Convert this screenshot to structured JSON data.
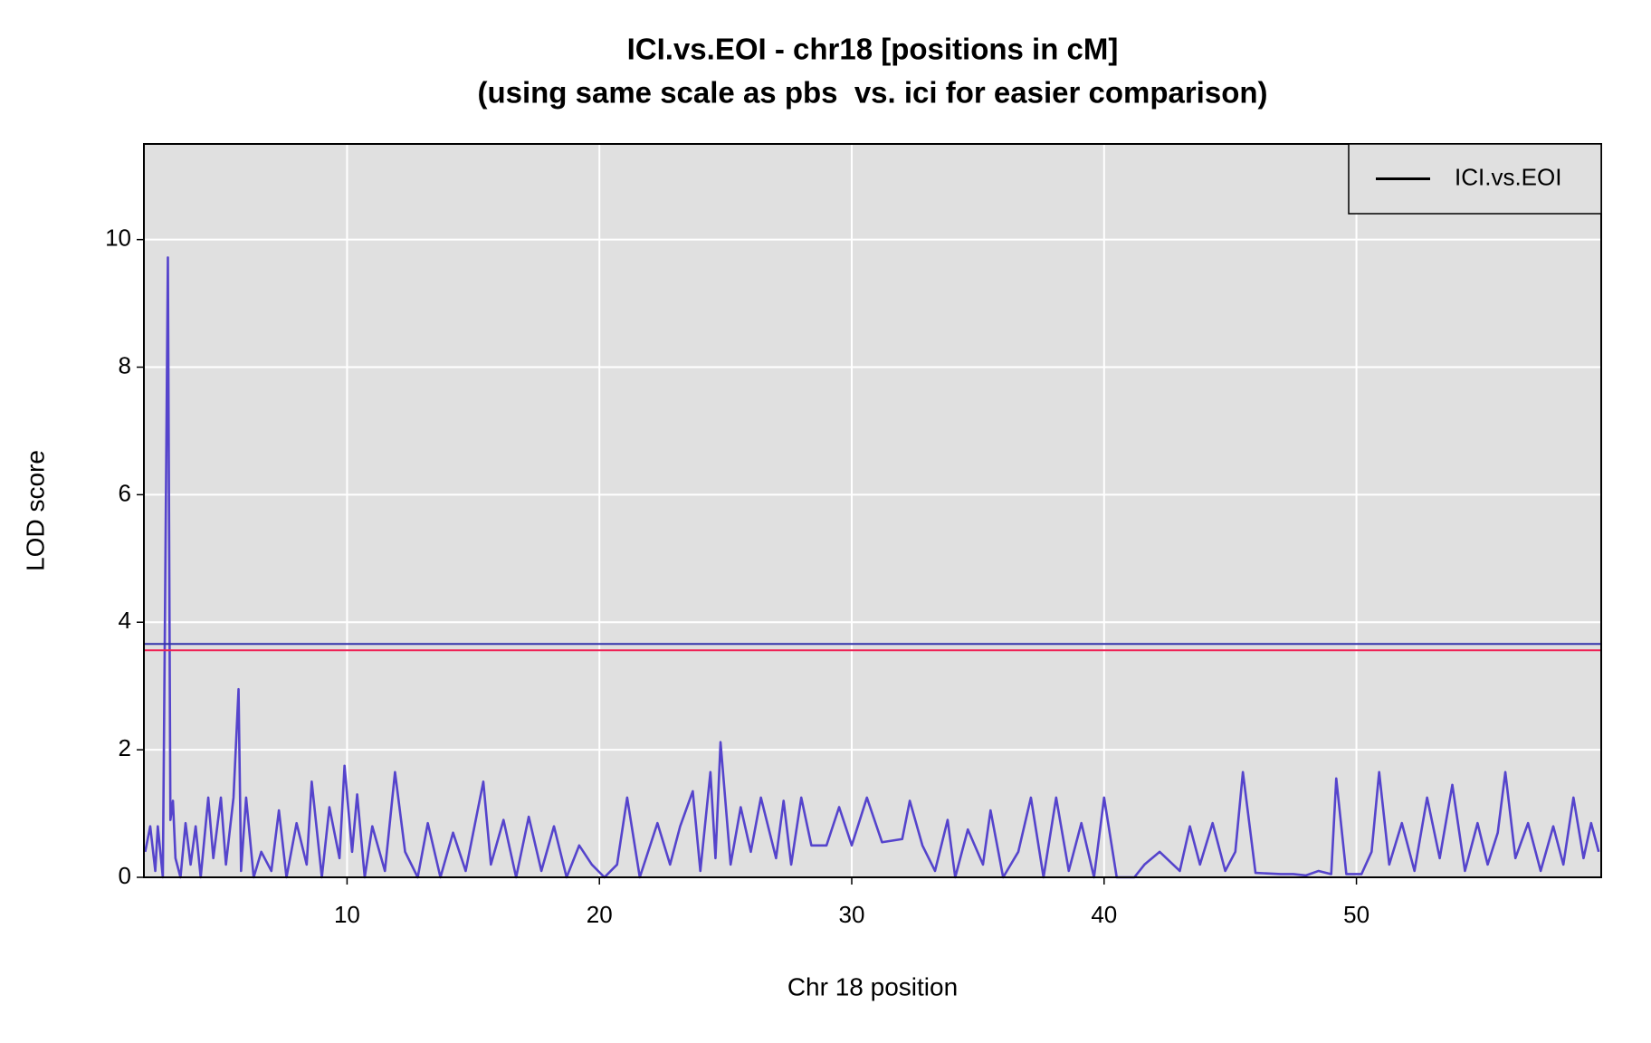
{
  "chart_data": {
    "type": "line",
    "title": "ICI.vs.EOI - chr18 [positions in cM]",
    "subtitle": "(using same scale as pbs  vs. ici for easier comparison)",
    "xlabel": "Chr 18 position",
    "ylabel": "LOD score",
    "x": [
      2.0,
      2.2,
      2.4,
      2.5,
      2.7,
      2.9,
      3.0,
      3.1,
      3.2,
      3.4,
      3.6,
      3.8,
      4.0,
      4.2,
      4.5,
      4.7,
      5.0,
      5.2,
      5.5,
      5.7,
      5.8,
      6.0,
      6.3,
      6.6,
      7.0,
      7.3,
      7.6,
      8.0,
      8.4,
      8.6,
      9.0,
      9.3,
      9.7,
      9.9,
      10.2,
      10.4,
      10.7,
      11.0,
      11.5,
      11.9,
      12.3,
      12.8,
      13.2,
      13.7,
      14.2,
      14.7,
      15.2,
      15.4,
      15.7,
      16.2,
      16.7,
      17.2,
      17.7,
      18.2,
      18.7,
      19.2,
      19.7,
      20.2,
      20.7,
      21.1,
      21.6,
      22.3,
      22.8,
      23.2,
      23.7,
      24.0,
      24.4,
      24.6,
      24.8,
      25.2,
      25.6,
      26.0,
      26.4,
      27.0,
      27.3,
      27.6,
      28.0,
      28.4,
      29.0,
      29.5,
      30.0,
      30.6,
      31.2,
      32.0,
      32.3,
      32.8,
      33.3,
      33.8,
      34.1,
      34.6,
      35.2,
      35.5,
      36.0,
      36.6,
      37.1,
      37.6,
      38.1,
      38.6,
      39.1,
      39.6,
      40.0,
      40.5,
      41.2,
      41.6,
      42.2,
      43.0,
      43.4,
      43.8,
      44.3,
      44.8,
      45.2,
      45.5,
      46.0,
      47.0,
      47.5,
      48.0,
      48.5,
      49.0,
      49.2,
      49.6,
      50.2,
      50.6,
      50.9,
      51.3,
      51.8,
      52.3,
      52.8,
      53.3,
      53.8,
      54.3,
      54.8,
      55.2,
      55.6,
      55.9,
      56.3,
      56.8,
      57.3,
      57.8,
      58.2,
      58.6,
      59.0,
      59.3,
      59.6
    ],
    "series": [
      {
        "name": "ICI.vs.EOI",
        "color": "#5544cc",
        "legend_color": "#000000",
        "values": [
          0.4,
          0.8,
          0.1,
          0.8,
          0.0,
          9.72,
          0.9,
          1.2,
          0.3,
          0.0,
          0.85,
          0.2,
          0.8,
          0.0,
          1.25,
          0.3,
          1.25,
          0.2,
          1.25,
          2.95,
          0.1,
          1.25,
          0.0,
          0.4,
          0.1,
          1.05,
          0.0,
          0.85,
          0.2,
          1.5,
          0.0,
          1.1,
          0.3,
          1.75,
          0.4,
          1.3,
          0.0,
          0.8,
          0.1,
          1.65,
          0.4,
          0.0,
          0.85,
          0.0,
          0.7,
          0.1,
          1.1,
          1.5,
          0.2,
          0.9,
          0.0,
          0.95,
          0.1,
          0.8,
          0.0,
          0.5,
          0.2,
          0.0,
          0.2,
          1.25,
          0.0,
          0.85,
          0.2,
          0.8,
          1.35,
          0.1,
          1.65,
          0.3,
          2.12,
          0.2,
          1.1,
          0.4,
          1.25,
          0.3,
          1.2,
          0.2,
          1.25,
          0.5,
          0.5,
          1.1,
          0.5,
          1.25,
          0.55,
          0.6,
          1.2,
          0.5,
          0.1,
          0.9,
          0.0,
          0.75,
          0.2,
          1.05,
          0.0,
          0.4,
          1.25,
          0.0,
          1.25,
          0.1,
          0.85,
          0.0,
          1.25,
          0.0,
          0.0,
          0.2,
          0.4,
          0.1,
          0.8,
          0.2,
          0.85,
          0.1,
          0.4,
          1.65,
          0.07,
          0.05,
          0.05,
          0.03,
          0.1,
          0.05,
          1.55,
          0.05,
          0.05,
          0.4,
          1.65,
          0.2,
          0.85,
          0.1,
          1.25,
          0.3,
          1.45,
          0.1,
          0.85,
          0.2,
          0.7,
          1.65,
          0.3,
          0.85,
          0.1,
          0.8,
          0.2,
          1.25,
          0.3,
          0.85,
          0.4
        ]
      }
    ],
    "hlines": [
      {
        "value": 3.66,
        "color": "#3333aa"
      },
      {
        "value": 3.56,
        "color": "#ee2255"
      }
    ],
    "xlim": [
      1.95,
      59.7
    ],
    "ylim": [
      0,
      11.5
    ],
    "xticks": [
      10,
      20,
      30,
      40,
      50
    ],
    "yticks": [
      0,
      2,
      4,
      6,
      8,
      10
    ],
    "grid": true,
    "legend": "top-right"
  }
}
